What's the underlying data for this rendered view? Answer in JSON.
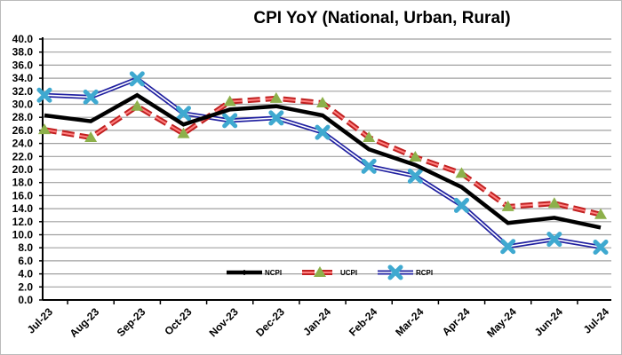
{
  "chart_data": {
    "type": "line",
    "title": "CPI YoY (National, Urban, Rural)",
    "xlabel": "",
    "ylabel": "",
    "ylim": [
      0,
      40
    ],
    "ytick_step": 2,
    "grid": true,
    "legend_placement": "bottom-center inside plot",
    "categories": [
      "Jul-23",
      "Aug-23",
      "Sep-23",
      "Oct-23",
      "Nov-23",
      "Dec-23",
      "Jan-24",
      "Feb-24",
      "Mar-24",
      "Apr-24",
      "May-24",
      "Jun-24",
      "Jul-24"
    ],
    "series": [
      {
        "name": "NCPI",
        "color": "#000000",
        "style": "solid thick",
        "marker": "none",
        "values": [
          28.3,
          27.4,
          31.4,
          26.9,
          29.2,
          29.7,
          28.3,
          23.1,
          20.7,
          17.3,
          11.8,
          12.6,
          11.1
        ]
      },
      {
        "name": "UCPI",
        "color": "#e03030",
        "style": "dashed",
        "marker": "triangle",
        "marker_color": "#8db04a",
        "values": [
          26.1,
          24.9,
          29.7,
          25.5,
          30.4,
          30.9,
          30.2,
          24.9,
          21.9,
          19.4,
          14.3,
          14.8,
          13.1
        ]
      },
      {
        "name": "RCPI",
        "color": "#2020a0",
        "style": "double line",
        "marker": "x",
        "marker_color": "#3fa9d0",
        "values": [
          31.4,
          31.1,
          33.9,
          28.6,
          27.5,
          27.9,
          25.7,
          20.5,
          19.0,
          14.5,
          8.2,
          9.3,
          8.1
        ]
      }
    ]
  }
}
